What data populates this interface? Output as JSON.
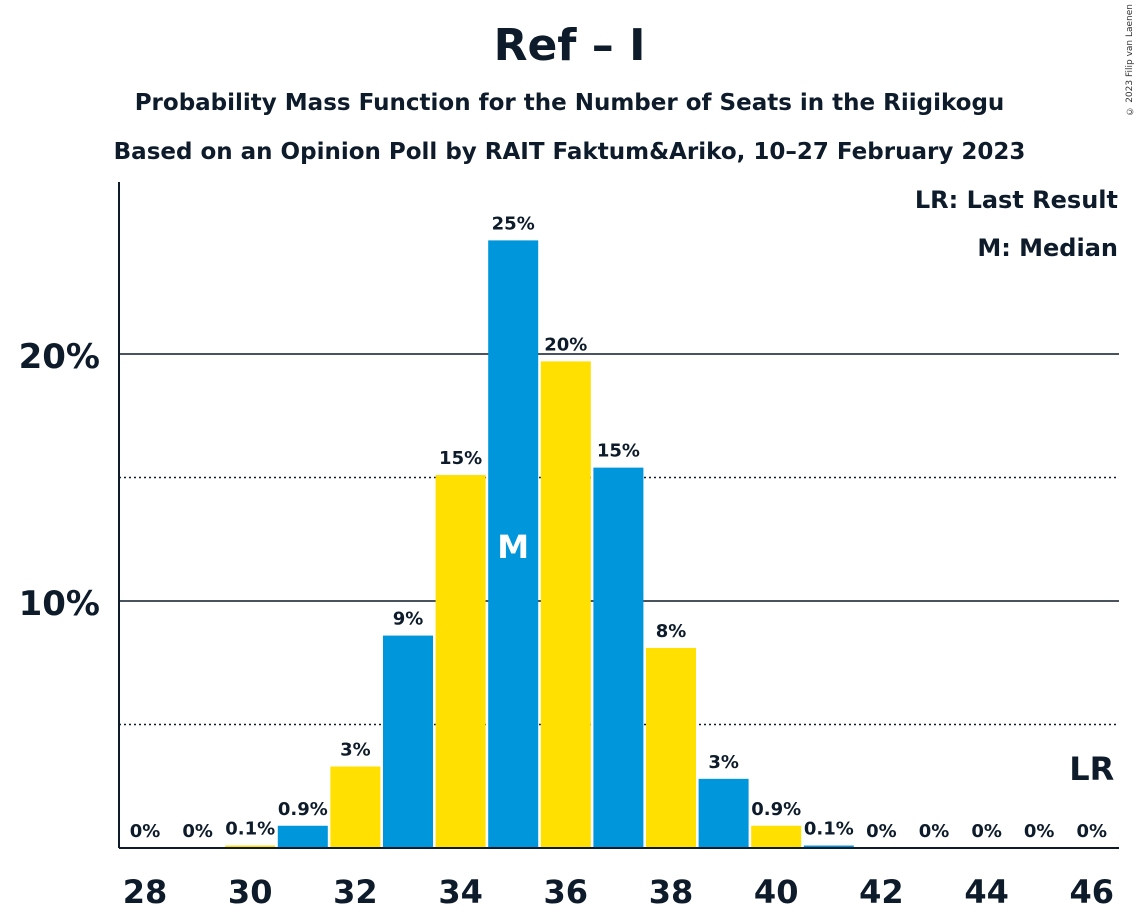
{
  "title": "Ref – I",
  "subtitle1": "Probability Mass Function for the Number of Seats in the Riigikogu",
  "subtitle2": "Based on an Opinion Poll by RAIT Faktum&Ariko, 10–27 February 2023",
  "copyright": "© 2023 Filip van Laenen",
  "legend": {
    "last_result": "LR: Last Result",
    "median": "M: Median"
  },
  "colors": {
    "blue": "#0096db",
    "yellow": "#ffe000",
    "text": "#0d1b2a"
  },
  "chart_data": {
    "type": "bar",
    "x": [
      28,
      29,
      30,
      31,
      32,
      33,
      34,
      35,
      36,
      37,
      38,
      39,
      40,
      41,
      42,
      43,
      44,
      45,
      46
    ],
    "values": [
      0,
      0,
      0.1,
      0.9,
      3.3,
      8.6,
      15.1,
      24.6,
      19.7,
      15.4,
      8.1,
      2.8,
      0.9,
      0.1,
      0,
      0,
      0,
      0,
      0
    ],
    "labels": [
      "0%",
      "0%",
      "0.1%",
      "0.9%",
      "3%",
      "9%",
      "15%",
      "25%",
      "20%",
      "15%",
      "8%",
      "3%",
      "0.9%",
      "0.1%",
      "0%",
      "0%",
      "0%",
      "0%",
      "0%"
    ],
    "x_tick_labels": [
      "28",
      "30",
      "32",
      "34",
      "36",
      "38",
      "40",
      "42",
      "44",
      "46"
    ],
    "y_tick_labels": [
      "10%",
      "20%"
    ],
    "y_ticks": [
      10,
      20
    ],
    "y_minor_ticks": [
      5,
      15
    ],
    "ylim": [
      0,
      27
    ],
    "median": 35,
    "median_label": "M",
    "last_result": 46,
    "last_result_label": "LR"
  }
}
